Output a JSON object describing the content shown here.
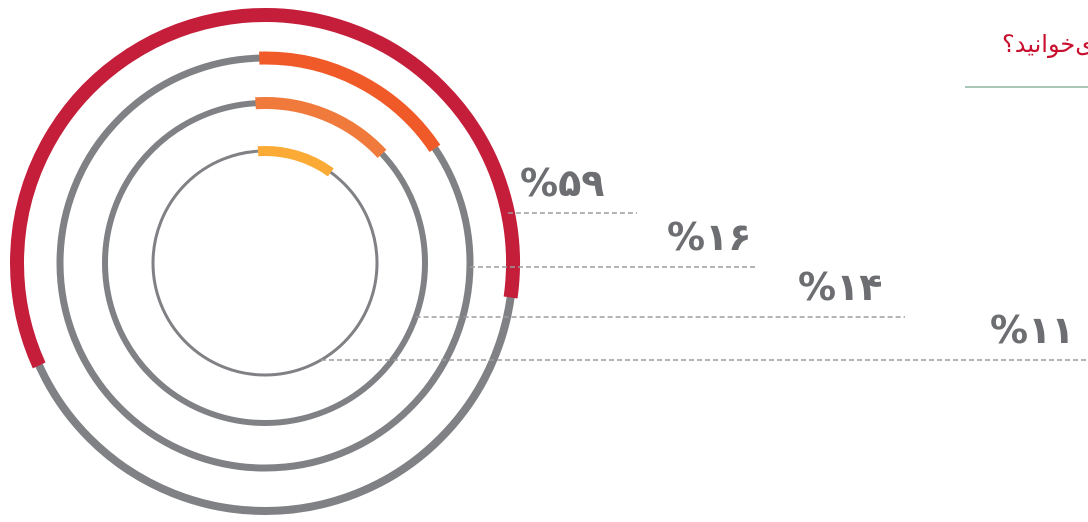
{
  "title": "ی‌خوانید؟",
  "colors": {
    "track": "#808184",
    "title": "#c8102e",
    "rule": "#a9c7b7",
    "leader": "#9c9c9c",
    "label": "#6d6e71"
  },
  "chart_data": {
    "type": "radial-bar",
    "title": "ی‌خوانید؟",
    "series": [
      {
        "label": "%۵۹",
        "value": 59,
        "color": "#c41e3a"
      },
      {
        "label": "%۱۶",
        "value": 16,
        "color": "#f05a28"
      },
      {
        "label": "%۱۴",
        "value": 14,
        "color": "#f07a3c"
      },
      {
        "label": "%۱۱",
        "value": 11,
        "color": "#fbab35"
      }
    ]
  }
}
